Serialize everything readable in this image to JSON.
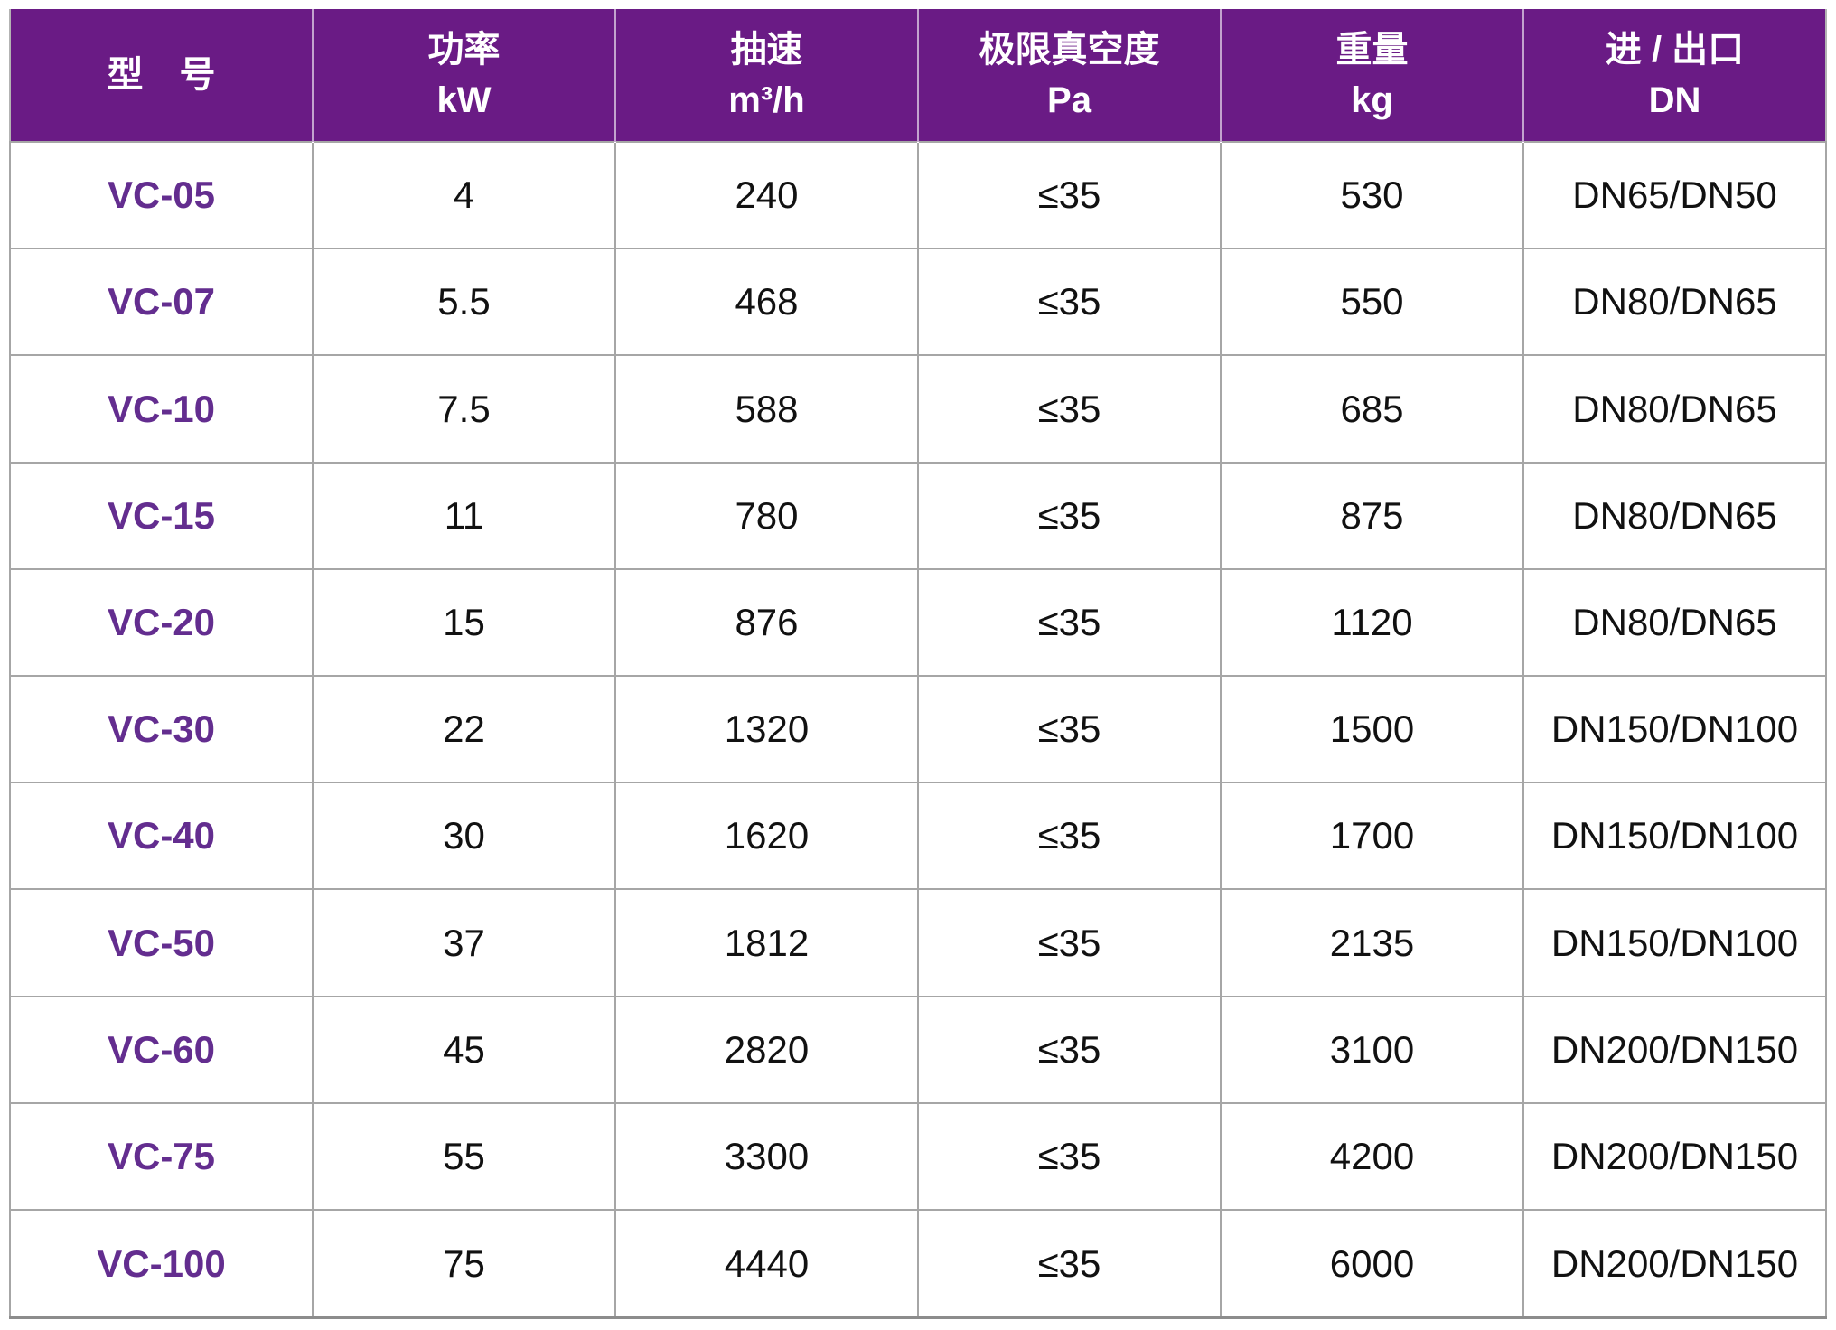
{
  "table": {
    "columns": [
      {
        "key": "model",
        "line1": "型　号",
        "line2": ""
      },
      {
        "key": "power",
        "line1": "功率",
        "line2": "kW"
      },
      {
        "key": "speed",
        "line1": "抽速",
        "line2": "m³/h"
      },
      {
        "key": "vacuum",
        "line1": "极限真空度",
        "line2": "Pa"
      },
      {
        "key": "weight",
        "line1": "重量",
        "line2": "kg"
      },
      {
        "key": "ports",
        "line1": "进 / 出口",
        "line2": "DN"
      }
    ],
    "rows": [
      {
        "model": "VC-05",
        "power": "4",
        "speed": "240",
        "vacuum": "≤35",
        "weight": "530",
        "ports": "DN65/DN50"
      },
      {
        "model": "VC-07",
        "power": "5.5",
        "speed": "468",
        "vacuum": "≤35",
        "weight": "550",
        "ports": "DN80/DN65"
      },
      {
        "model": "VC-10",
        "power": "7.5",
        "speed": "588",
        "vacuum": "≤35",
        "weight": "685",
        "ports": "DN80/DN65"
      },
      {
        "model": "VC-15",
        "power": "11",
        "speed": "780",
        "vacuum": "≤35",
        "weight": "875",
        "ports": "DN80/DN65"
      },
      {
        "model": "VC-20",
        "power": "15",
        "speed": "876",
        "vacuum": "≤35",
        "weight": "1120",
        "ports": "DN80/DN65"
      },
      {
        "model": "VC-30",
        "power": "22",
        "speed": "1320",
        "vacuum": "≤35",
        "weight": "1500",
        "ports": "DN150/DN100"
      },
      {
        "model": "VC-40",
        "power": "30",
        "speed": "1620",
        "vacuum": "≤35",
        "weight": "1700",
        "ports": "DN150/DN100"
      },
      {
        "model": "VC-50",
        "power": "37",
        "speed": "1812",
        "vacuum": "≤35",
        "weight": "2135",
        "ports": "DN150/DN100"
      },
      {
        "model": "VC-60",
        "power": "45",
        "speed": "2820",
        "vacuum": "≤35",
        "weight": "3100",
        "ports": "DN200/DN150"
      },
      {
        "model": "VC-75",
        "power": "55",
        "speed": "3300",
        "vacuum": "≤35",
        "weight": "4200",
        "ports": "DN200/DN150"
      },
      {
        "model": "VC-100",
        "power": "75",
        "speed": "4440",
        "vacuum": "≤35",
        "weight": "6000",
        "ports": "DN200/DN150"
      }
    ],
    "colors": {
      "header_bg": "#6A1B85",
      "header_text": "#FFFFFF",
      "model_text": "#632D8F",
      "body_text": "#111111",
      "grid_line": "#A6A6A6",
      "outer_border": "#8C8C8C"
    }
  }
}
